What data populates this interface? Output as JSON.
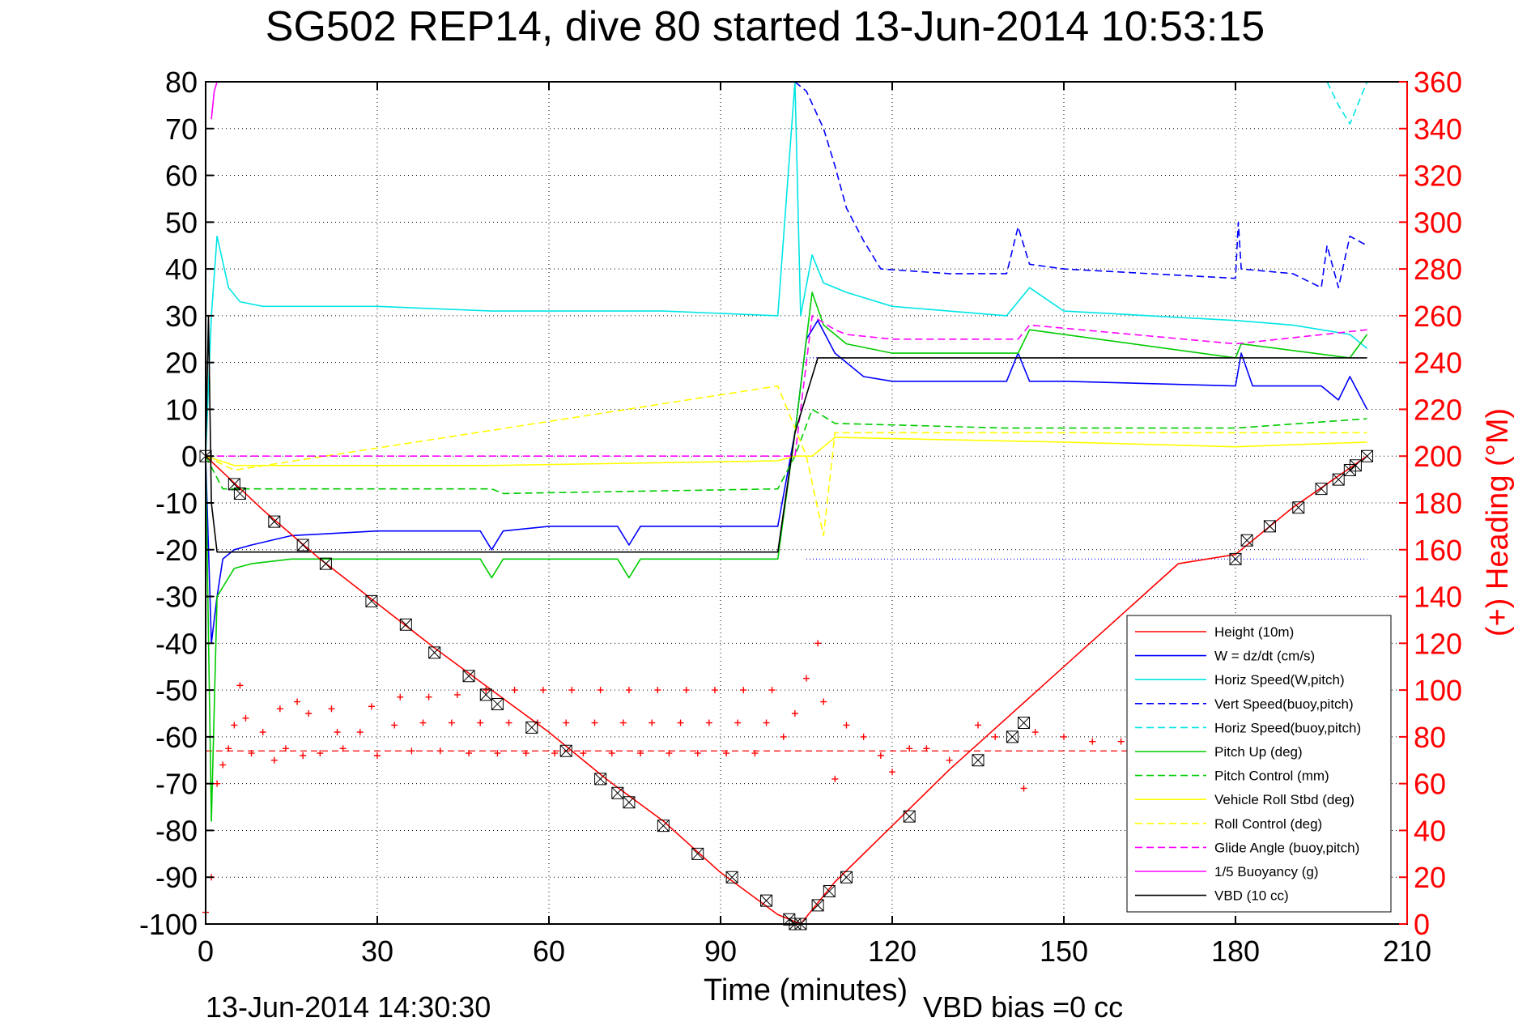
{
  "chart_data": {
    "type": "line",
    "title": "SG502 REP14, dive 80 started 13-Jun-2014 10:53:15",
    "xlabel": "Time (minutes)",
    "ylabel_right": "(+) Heading (°M)",
    "footer_left": "13-Jun-2014 14:30:30",
    "footer_right": "VBD bias =0 cc",
    "xlim": [
      0,
      210
    ],
    "ylim_left": [
      -100,
      80
    ],
    "ylim_right": [
      0,
      360
    ],
    "xticks": [
      "0",
      "30",
      "60",
      "90",
      "120",
      "150",
      "180",
      "210"
    ],
    "yticks_left": [
      "80",
      "70",
      "60",
      "50",
      "40",
      "30",
      "20",
      "10",
      "0",
      "-10",
      "-20",
      "-30",
      "-40",
      "-50",
      "-60",
      "-70",
      "-80",
      "-90",
      "-100"
    ],
    "yticks_right": [
      "360",
      "340",
      "320",
      "300",
      "280",
      "260",
      "240",
      "220",
      "200",
      "180",
      "160",
      "140",
      "120",
      "100",
      "80",
      "60",
      "40",
      "20",
      "0"
    ],
    "grid": true,
    "legend_position": "lower-right",
    "colors": {
      "height": "#ff0000",
      "w": "#0000ff",
      "horiz_speed": "#00e5e5",
      "pitch": "#00cc00",
      "roll": "#ffff00",
      "glide": "#ff00ff",
      "vbd": "#000000",
      "heading": "#ff0000",
      "right_axis": "#ff0000"
    },
    "series": [
      {
        "name": "Height (10m)",
        "color": "#ff0000",
        "dash": "solid",
        "x": [
          0,
          10,
          20,
          30,
          40,
          50,
          60,
          70,
          80,
          90,
          100,
          104,
          110,
          120,
          130,
          140,
          150,
          160,
          170,
          180,
          190,
          203
        ],
        "y": [
          0,
          -11.5,
          -22,
          -31.5,
          -41,
          -50,
          -59,
          -69,
          -78,
          -89,
          -98,
          -100,
          -91,
          -79,
          -67,
          -56,
          -45,
          -34,
          -23,
          -21,
          -11,
          0
        ]
      },
      {
        "name": "W = dz/dt (cm/s)",
        "color": "#0000ff",
        "dash": "solid",
        "x": [
          0,
          1,
          2,
          3,
          5,
          8,
          15,
          30,
          48,
          50,
          52,
          60,
          72,
          74,
          76,
          80,
          90,
          100,
          103,
          105,
          107,
          110,
          115,
          120,
          140,
          142,
          144,
          150,
          180,
          181,
          183,
          195,
          198,
          200,
          203
        ],
        "y": [
          0,
          -40,
          -30,
          -22,
          -20,
          -19,
          -17,
          -16,
          -16,
          -20,
          -16,
          -15,
          -15,
          -19,
          -15,
          -15,
          -15,
          -15,
          5,
          25,
          29,
          22,
          17,
          16,
          16,
          22,
          16,
          16,
          15,
          22,
          15,
          15,
          12,
          17,
          10
        ]
      },
      {
        "name": "Horiz Speed(W,pitch)",
        "color": "#00e5e5",
        "dash": "solid",
        "x": [
          0,
          1,
          2,
          4,
          6,
          10,
          30,
          50,
          70,
          80,
          100,
          103,
          104,
          106,
          108,
          112,
          120,
          140,
          144,
          150,
          180,
          190,
          200,
          203
        ],
        "y": [
          0,
          30,
          47,
          36,
          33,
          32,
          32,
          31,
          31,
          31,
          30,
          80,
          30,
          43,
          37,
          35,
          32,
          30,
          36,
          31,
          29,
          28,
          26,
          23
        ]
      },
      {
        "name": "Vert Speed(buoy,pitch)",
        "color": "#0000ff",
        "dash": "dashed",
        "x": [
          103,
          105,
          108,
          110,
          112,
          115,
          118,
          130,
          140,
          142,
          144,
          150,
          180,
          180.5,
          181,
          190,
          195,
          196,
          198,
          200,
          203
        ],
        "y": [
          80,
          78,
          70,
          62,
          53,
          46,
          40,
          39,
          39,
          49,
          41,
          40,
          38,
          50,
          40,
          39,
          36,
          45,
          36,
          47,
          45
        ]
      },
      {
        "name": "Horiz Speed(buoy,pitch)",
        "color": "#00e5e5",
        "dash": "dashed",
        "x": [
          196,
          198,
          200,
          203
        ],
        "y": [
          80,
          75,
          71,
          80
        ]
      },
      {
        "name": "Pitch Up (deg)",
        "color": "#00cc00",
        "dash": "solid",
        "x": [
          0,
          1,
          2,
          3,
          5,
          8,
          15,
          30,
          48,
          50,
          52,
          72,
          74,
          76,
          80,
          100,
          103,
          106,
          108,
          112,
          120,
          142,
          144,
          180,
          181,
          200,
          203
        ],
        "y": [
          0,
          -78,
          -30,
          -28,
          -24,
          -23,
          -22,
          -22,
          -22,
          -26,
          -22,
          -22,
          -26,
          -22,
          -22,
          -22,
          5,
          35,
          28,
          24,
          22,
          22,
          27,
          21,
          24,
          21,
          26
        ]
      },
      {
        "name": "Pitch Control (mm)",
        "color": "#00cc00",
        "dash": "dashed",
        "x": [
          0,
          3,
          5,
          50,
          52,
          100,
          103,
          106,
          110,
          140,
          180,
          203
        ],
        "y": [
          0,
          -7,
          -7,
          -7,
          -8,
          -7,
          0,
          10,
          7,
          6,
          6,
          8
        ]
      },
      {
        "name": "Vehicle Roll Stbd (deg)",
        "color": "#ffff00",
        "dash": "solid",
        "x": [
          0,
          5,
          20,
          50,
          100,
          103,
          106,
          110,
          150,
          180,
          203
        ],
        "y": [
          0,
          -2,
          -2,
          -2,
          -1,
          0,
          0,
          4,
          3,
          2,
          3
        ]
      },
      {
        "name": "Roll Control (deg)",
        "color": "#ffff00",
        "dash": "dashed",
        "x": [
          0,
          5,
          100,
          105,
          108,
          110,
          203
        ],
        "y": [
          0,
          -3,
          15,
          0,
          -17,
          5,
          5
        ]
      },
      {
        "name": "Glide Angle (buoy,pitch)",
        "color": "#ff00ff",
        "dash": "dashed",
        "x": [
          0,
          100,
          103,
          106,
          110,
          112,
          120,
          142,
          144,
          180,
          203
        ],
        "y": [
          0,
          0,
          0,
          30,
          27,
          26,
          25,
          25,
          28,
          24,
          27
        ]
      },
      {
        "name": "1/5 Buoyancy (g)",
        "color": "#ff00ff",
        "dash": "solid",
        "x": [
          1,
          1.5,
          2
        ],
        "y": [
          72,
          78,
          80
        ]
      },
      {
        "name": "VBD (10 cc)",
        "color": "#000000",
        "dash": "solid",
        "x": [
          0,
          0.5,
          1,
          2,
          100,
          103,
          107,
          203
        ],
        "y": [
          0,
          30,
          -10,
          -20.5,
          -20.5,
          5,
          21,
          21
        ]
      }
    ],
    "heading_series": {
      "name": "Heading (°M)",
      "axis": "right",
      "marker": "+",
      "color": "#ff0000",
      "x": [
        0,
        1,
        2,
        3,
        4,
        5,
        6,
        7,
        8,
        10,
        12,
        13,
        14,
        16,
        17,
        18,
        20,
        22,
        23,
        24,
        27,
        29,
        30,
        33,
        34,
        36,
        38,
        39,
        41,
        43,
        44,
        46,
        48,
        49,
        51,
        53,
        54,
        56,
        58,
        59,
        61,
        63,
        64,
        66,
        68,
        69,
        71,
        73,
        74,
        76,
        78,
        79,
        81,
        83,
        84,
        86,
        88,
        89,
        91,
        93,
        94,
        96,
        98,
        99,
        101,
        103,
        105,
        107,
        108,
        110,
        112,
        115,
        118,
        120,
        123,
        126,
        130,
        135,
        138,
        143,
        145,
        150,
        155,
        160
      ],
      "y": [
        5,
        20,
        60,
        68,
        75,
        85,
        102,
        88,
        73,
        82,
        70,
        92,
        75,
        95,
        72,
        90,
        73,
        92,
        82,
        75,
        82,
        93,
        72,
        85,
        97,
        74,
        86,
        97,
        74,
        86,
        98,
        73,
        86,
        100,
        73,
        86,
        100,
        73,
        86,
        100,
        73,
        86,
        100,
        73,
        86,
        100,
        73,
        86,
        100,
        73,
        86,
        100,
        73,
        86,
        100,
        73,
        86,
        100,
        73,
        86,
        100,
        73,
        86,
        100,
        80,
        90,
        105,
        120,
        95,
        62,
        85,
        80,
        72,
        65,
        75,
        75,
        70,
        85,
        80,
        58,
        82,
        80,
        78,
        78
      ]
    },
    "heading_target": 74,
    "reference_lines": [
      {
        "axis": "left",
        "y": 21,
        "color": "#0000ff",
        "style": "dotted",
        "x": [
          105,
          203
        ]
      },
      {
        "axis": "left",
        "y": -22,
        "color": "#0000ff",
        "style": "dotted",
        "x": [
          105,
          203
        ]
      }
    ],
    "height_markers": {
      "note": "GC markers along Height trace",
      "x": [
        0,
        5,
        6,
        12,
        17,
        21,
        29,
        35,
        40,
        46,
        49,
        51,
        57,
        63,
        69,
        72,
        74,
        80,
        86,
        92,
        98,
        102,
        103,
        104,
        107,
        109,
        112,
        123,
        135,
        141,
        143,
        180,
        182,
        186,
        191,
        195,
        198,
        200,
        201,
        203
      ],
      "y": [
        0,
        -6,
        -8,
        -14,
        -19,
        -23,
        -31,
        -36,
        -42,
        -47,
        -51,
        -53,
        -58,
        -63,
        -69,
        -72,
        -74,
        -79,
        -85,
        -90,
        -95,
        -99,
        -100,
        -100,
        -96,
        -93,
        -90,
        -77,
        -65,
        -60,
        -57,
        -22,
        -18,
        -15,
        -11,
        -7,
        -5,
        -3,
        -2,
        0
      ]
    }
  }
}
